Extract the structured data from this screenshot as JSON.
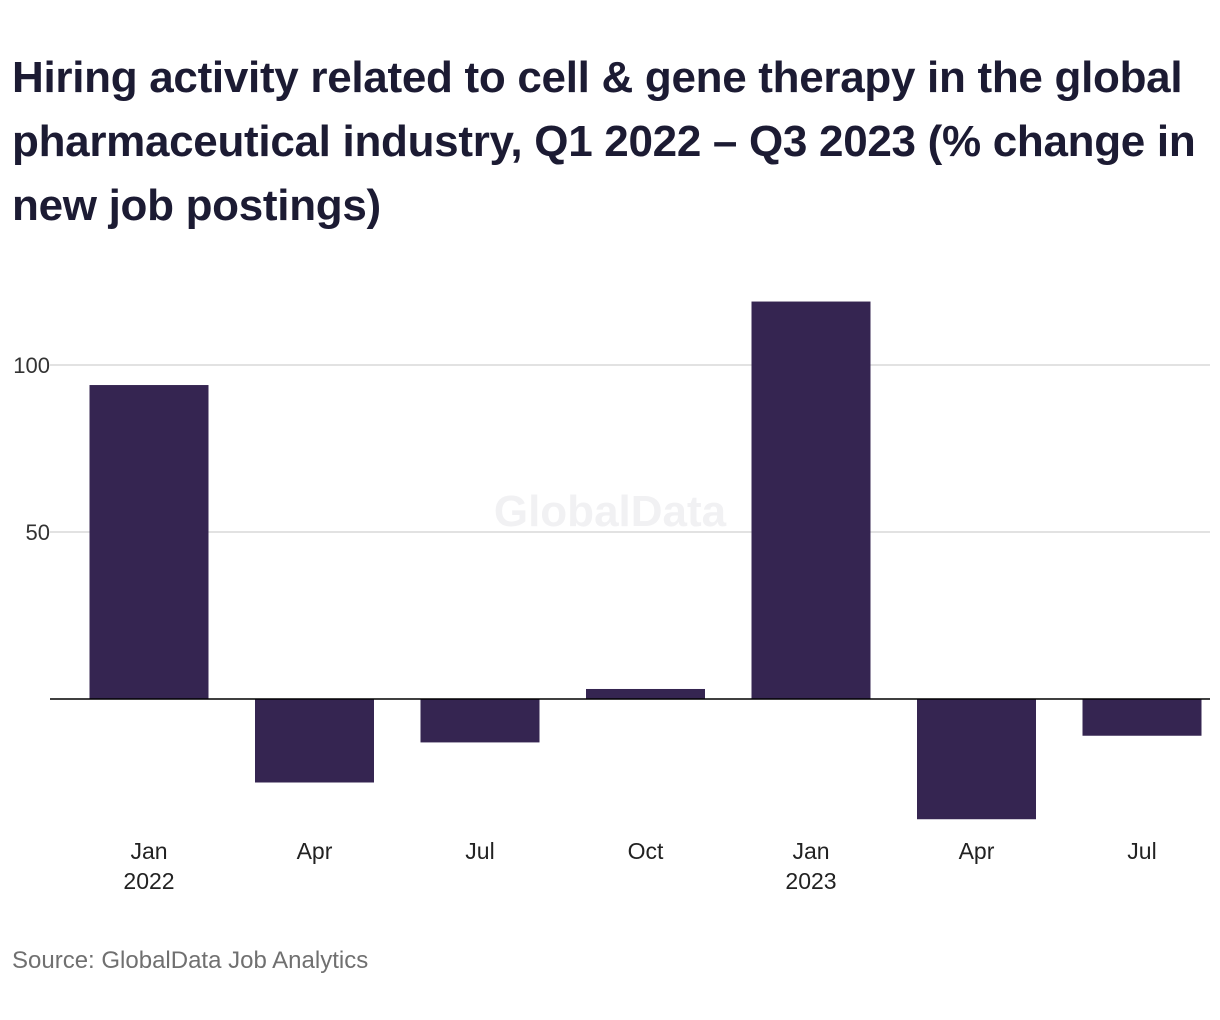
{
  "chart_data": {
    "type": "bar",
    "title": "Hiring activity related to cell & gene therapy in the global pharmaceutical industry, Q1 2022 – Q3 2023 (% change in new job postings)",
    "categories": [
      "Q1 2022",
      "Q2 2022",
      "Q3 2022",
      "Q4 2022",
      "Q1 2023",
      "Q2 2023",
      "Q3 2023"
    ],
    "tick_labels": [
      {
        "month": "Jan",
        "year": "2022"
      },
      {
        "month": "Apr",
        "year": ""
      },
      {
        "month": "Jul",
        "year": ""
      },
      {
        "month": "Oct",
        "year": ""
      },
      {
        "month": "Jan",
        "year": "2023"
      },
      {
        "month": "Apr",
        "year": ""
      },
      {
        "month": "Jul",
        "year": ""
      }
    ],
    "values": [
      94,
      -25,
      -13,
      3,
      119,
      -36,
      -11
    ],
    "y_ticks": [
      50,
      100
    ],
    "ylim": [
      -42,
      130
    ],
    "grid": true,
    "xlabel": "",
    "ylabel": "",
    "colors": {
      "bar": "#352551",
      "grid": "#d9d9d9",
      "baseline": "#000000"
    }
  },
  "watermark": "GlobalData",
  "source": "Source: GlobalData Job Analytics"
}
